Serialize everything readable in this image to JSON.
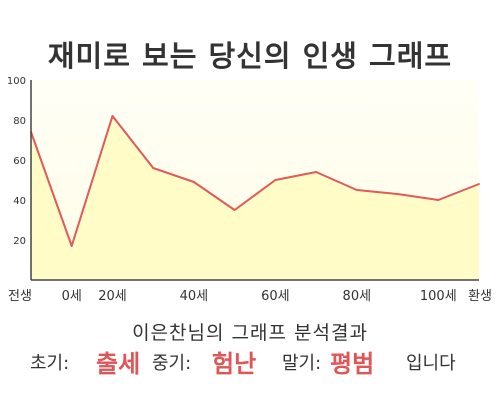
{
  "title": "재미로 보는 당신의 인생 그래프",
  "chart_data": {
    "type": "area",
    "x_labels": [
      "전생",
      "0세",
      "20세",
      "40세",
      "60세",
      "80세",
      "100세",
      "환생"
    ],
    "points": [
      {
        "x": "전생",
        "y": 74
      },
      {
        "x": "0세",
        "y": 17
      },
      {
        "x": "20세",
        "y": 82
      },
      {
        "x": "30세",
        "y": 56
      },
      {
        "x": "40세",
        "y": 49
      },
      {
        "x": "50세",
        "y": 35
      },
      {
        "x": "60세",
        "y": 50
      },
      {
        "x": "70세",
        "y": 54
      },
      {
        "x": "80세",
        "y": 45
      },
      {
        "x": "90세",
        "y": 43
      },
      {
        "x": "100세",
        "y": 40
      },
      {
        "x": "환생",
        "y": 48
      }
    ],
    "yticks": [
      20,
      40,
      60,
      80,
      100
    ],
    "ylim": [
      0,
      100
    ],
    "grid": false,
    "colors": {
      "line": "#e05a5a",
      "fill": "#fffcc8",
      "plot_top": "#fffff4",
      "axis": "#444444",
      "label": "#333333"
    }
  },
  "subtitle": "이은찬님의 그래프 분석결과",
  "summary": {
    "early_label": "초기:",
    "early_value": "출세",
    "mid_label": "중기:",
    "mid_value": "험난",
    "late_label": "말기:",
    "late_value": "평범",
    "ending": "입니다"
  }
}
